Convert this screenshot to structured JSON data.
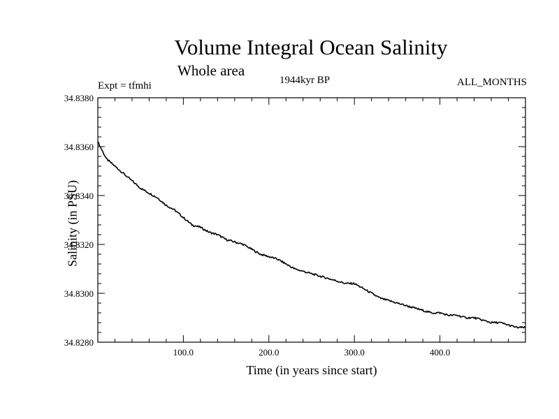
{
  "chart_data": {
    "type": "line",
    "title": "Volume Integral Ocean Salinity",
    "subtitle": "Whole area",
    "experiment": "Expt = tfmhi",
    "period": "1944kyr BP",
    "months": "ALL_MONTHS",
    "xlabel": "Time (in years since start)",
    "ylabel": "Salinity (in PSU)",
    "xlim": [
      0,
      500
    ],
    "ylim": [
      34.828,
      34.838
    ],
    "x_ticks": [
      100,
      200,
      300,
      400
    ],
    "x_tick_labels": [
      "100.0",
      "200.0",
      "300.0",
      "400.0"
    ],
    "y_ticks": [
      34.828,
      34.83,
      34.832,
      34.834,
      34.836,
      34.838
    ],
    "y_tick_labels": [
      "34.8280",
      "34.8300",
      "34.8320",
      "34.8340",
      "34.8360",
      "34.8380"
    ],
    "series": [
      {
        "name": "Salinity",
        "color": "#000000",
        "x": [
          0,
          10,
          20,
          30,
          40,
          50,
          60,
          70,
          80,
          90,
          100,
          110,
          120,
          130,
          140,
          150,
          160,
          170,
          180,
          190,
          200,
          210,
          220,
          230,
          240,
          250,
          260,
          270,
          280,
          290,
          300,
          310,
          320,
          330,
          340,
          350,
          360,
          370,
          380,
          390,
          400,
          410,
          420,
          430,
          440,
          450,
          460,
          470,
          480,
          490,
          500
        ],
        "values": [
          34.8362,
          34.8355,
          34.8352,
          34.8349,
          34.8346,
          34.8343,
          34.8341,
          34.8339,
          34.8336,
          34.8334,
          34.8331,
          34.8328,
          34.8327,
          34.8325,
          34.8324,
          34.8322,
          34.8321,
          34.832,
          34.8318,
          34.8316,
          34.8315,
          34.8314,
          34.8312,
          34.831,
          34.8309,
          34.8308,
          34.8307,
          34.8306,
          34.8305,
          34.8304,
          34.8304,
          34.8302,
          34.83,
          34.8298,
          34.8297,
          34.8296,
          34.8295,
          34.8294,
          34.8293,
          34.8292,
          34.8292,
          34.8291,
          34.8291,
          34.829,
          34.829,
          34.8289,
          34.8288,
          34.8288,
          34.8287,
          34.8286,
          34.8286
        ]
      }
    ]
  }
}
